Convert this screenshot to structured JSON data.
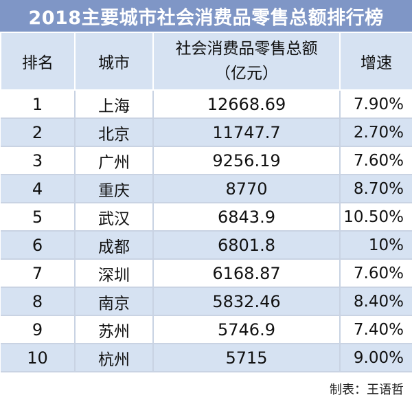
{
  "title": "2018主要城市社会消费品零售总额排行榜",
  "headers": {
    "rank": "排名",
    "city": "城市",
    "amount_line1": "社会消费品零售总额",
    "amount_line2": "（亿元）",
    "growth": "增速"
  },
  "rows": [
    {
      "rank": "1",
      "city": "上海",
      "amount": "12668.69",
      "growth": "7.90%"
    },
    {
      "rank": "2",
      "city": "北京",
      "amount": "11747.7",
      "growth": "2.70%"
    },
    {
      "rank": "3",
      "city": "广州",
      "amount": "9256.19",
      "growth": "7.60%"
    },
    {
      "rank": "4",
      "city": "重庆",
      "amount": "8770",
      "growth": "8.70%"
    },
    {
      "rank": "5",
      "city": "武汉",
      "amount": "6843.9",
      "growth": "10.50%"
    },
    {
      "rank": "6",
      "city": "成都",
      "amount": "6801.8",
      "growth": "10%"
    },
    {
      "rank": "7",
      "city": "深圳",
      "amount": "6168.87",
      "growth": "7.60%"
    },
    {
      "rank": "8",
      "city": "南京",
      "amount": "5832.46",
      "growth": "8.40%"
    },
    {
      "rank": "9",
      "city": "苏州",
      "amount": "5746.9",
      "growth": "7.40%"
    },
    {
      "rank": "10",
      "city": "杭州",
      "amount": "5715",
      "growth": "9.00%"
    }
  ],
  "credit": "制表：王语哲",
  "colors": {
    "title_bar": "#7f96c6",
    "header_bg": "#d6e2f2",
    "stripe_bg": "#d6e2f2"
  }
}
